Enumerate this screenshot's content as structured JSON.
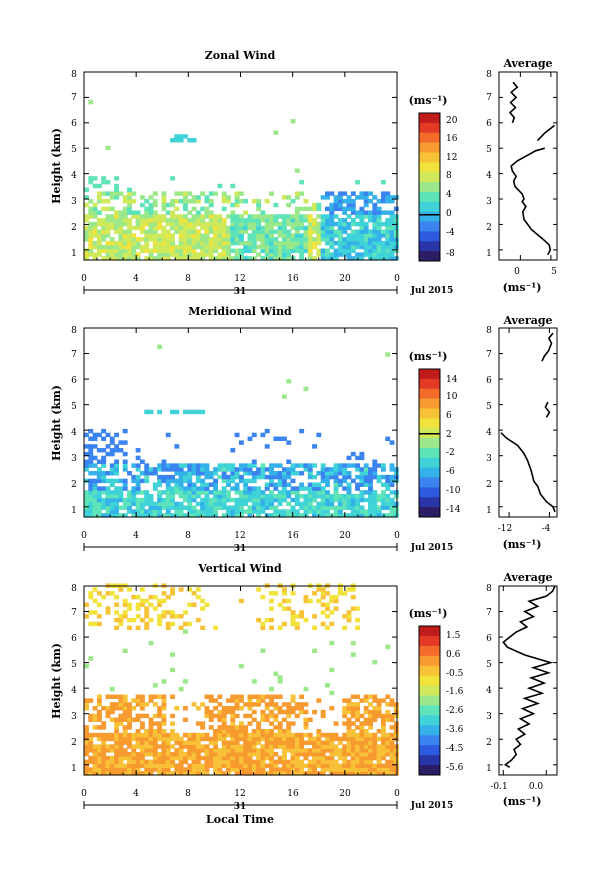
{
  "chart_data": [
    {
      "type": "heatmap",
      "title": "Zonal Wind",
      "ylabel": "Height (km)",
      "xlabel": "",
      "x_ticks": [
        "0",
        "4",
        "8",
        "12",
        "16",
        "20",
        "0"
      ],
      "y_ticks": [
        "1",
        "2",
        "3",
        "4",
        "5",
        "6",
        "7",
        "8"
      ],
      "ylim": [
        0.6,
        8.0
      ],
      "xlim": [
        0,
        24
      ],
      "date_axis": {
        "day_label": "31",
        "date_label": "Jul 2015"
      },
      "colorbar": {
        "unit": "(ms⁻¹)",
        "ticks": [
          "20",
          "16",
          "12",
          "8",
          "4",
          "0",
          "-4",
          "-8"
        ],
        "range": [
          -10,
          22
        ],
        "zero_marker": 0
      },
      "average": {
        "title": "Average",
        "xlabel": "(ms⁻¹)",
        "x_ticks": [
          "0",
          "5"
        ],
        "xlim": [
          -3.5,
          6
        ],
        "y_ticks": [
          "1",
          "2",
          "3",
          "4",
          "5",
          "6",
          "7",
          "8"
        ],
        "ylim": [
          0.6,
          8.0
        ],
        "points": [
          [
            4.5,
            0.8
          ],
          [
            4.9,
            1.0
          ],
          [
            4.7,
            1.2
          ],
          [
            3.8,
            1.4
          ],
          [
            2.8,
            1.6
          ],
          [
            1.8,
            1.8
          ],
          [
            1.2,
            2.0
          ],
          [
            0.6,
            2.2
          ],
          [
            0.4,
            2.5
          ],
          [
            0.9,
            2.7
          ],
          [
            0.3,
            2.9
          ],
          [
            0.6,
            3.0
          ],
          [
            0.3,
            3.2
          ],
          [
            -0.5,
            3.4
          ],
          [
            -0.9,
            3.5
          ],
          [
            -1.1,
            3.7
          ],
          [
            -0.7,
            3.9
          ],
          [
            -1.3,
            4.1
          ],
          [
            -1.5,
            4.3
          ],
          [
            -0.5,
            4.5
          ],
          [
            1.0,
            4.7
          ],
          [
            2.5,
            4.9
          ],
          [
            4.0,
            5.0
          ]
        ],
        "segments": [
          [
            [
              -1.3,
              6.0
            ],
            [
              -1.0,
              6.2
            ],
            [
              -1.7,
              6.4
            ],
            [
              -0.8,
              6.6
            ],
            [
              -1.6,
              6.8
            ],
            [
              -0.7,
              7.0
            ],
            [
              -1.5,
              7.2
            ],
            [
              -0.5,
              7.4
            ],
            [
              -1.2,
              7.6
            ]
          ],
          [
            [
              2.8,
              5.3
            ],
            [
              4.0,
              5.6
            ],
            [
              5.6,
              5.9
            ]
          ]
        ]
      }
    },
    {
      "type": "heatmap",
      "title": "Meridional Wind",
      "ylabel": "Height (km)",
      "xlabel": "",
      "x_ticks": [
        "0",
        "4",
        "8",
        "12",
        "16",
        "20",
        "0"
      ],
      "y_ticks": [
        "1",
        "2",
        "3",
        "4",
        "5",
        "6",
        "7",
        "8"
      ],
      "ylim": [
        0.6,
        8.0
      ],
      "xlim": [
        0,
        24
      ],
      "date_axis": {
        "day_label": "31",
        "date_label": "Jul 2015"
      },
      "colorbar": {
        "unit": "(ms⁻¹)",
        "ticks": [
          "14",
          "10",
          "6",
          "2",
          "-2",
          "-6",
          "-10",
          "-14"
        ],
        "range": [
          -16,
          16
        ],
        "zero_marker": 2
      },
      "average": {
        "title": "Average",
        "xlabel": "(ms⁻¹)",
        "x_ticks": [
          "-12",
          "-4"
        ],
        "xlim": [
          -14,
          -2.5
        ],
        "y_ticks": [
          "1",
          "2",
          "3",
          "4",
          "5",
          "6",
          "7",
          "8"
        ],
        "ylim": [
          0.6,
          8.0
        ],
        "points": [
          [
            -2.9,
            0.8
          ],
          [
            -3.3,
            1.0
          ],
          [
            -4.6,
            1.2
          ],
          [
            -5.8,
            1.5
          ],
          [
            -6.3,
            1.8
          ],
          [
            -7.1,
            2.0
          ],
          [
            -7.6,
            2.4
          ],
          [
            -8.3,
            2.8
          ],
          [
            -9.1,
            3.1
          ],
          [
            -10.3,
            3.4
          ],
          [
            -12.6,
            3.7
          ],
          [
            -13.6,
            3.9
          ]
        ],
        "segments": [
          [
            [
              -4.6,
              4.5
            ],
            [
              -4.0,
              4.7
            ],
            [
              -4.8,
              4.9
            ],
            [
              -4.3,
              5.1
            ]
          ],
          [
            [
              -5.5,
              6.7
            ],
            [
              -5.0,
              6.9
            ],
            [
              -4.2,
              7.1
            ],
            [
              -3.6,
              7.4
            ],
            [
              -4.1,
              7.6
            ],
            [
              -3.3,
              7.8
            ]
          ]
        ]
      }
    },
    {
      "type": "heatmap",
      "title": "Vertical Wind",
      "ylabel": "Height (km)",
      "xlabel": "Local Time",
      "x_ticks": [
        "0",
        "4",
        "8",
        "12",
        "16",
        "20",
        "0"
      ],
      "y_ticks": [
        "1",
        "2",
        "3",
        "4",
        "5",
        "6",
        "7",
        "8"
      ],
      "ylim": [
        0.6,
        8.0
      ],
      "xlim": [
        0,
        24
      ],
      "date_axis": {
        "day_label": "31",
        "date_label": "Jul 2015"
      },
      "colorbar": {
        "unit": "(ms⁻¹)",
        "ticks": [
          "1.5",
          "0.6",
          "-0.5",
          "-1.6",
          "-2.6",
          "-3.6",
          "-4.5",
          "-5.6"
        ],
        "range": [
          -6.2,
          2.1
        ],
        "zero_marker": null
      },
      "average": {
        "title": "Average",
        "xlabel": "(ms⁻¹)",
        "x_ticks": [
          "-0.1",
          "0.0"
        ],
        "xlim": [
          -0.11,
          0.025
        ],
        "y_ticks": [
          "1",
          "2",
          "3",
          "4",
          "5",
          "6",
          "7",
          "8"
        ],
        "ylim": [
          0.6,
          8.0
        ],
        "points": [
          [
            -0.085,
            0.9
          ],
          [
            -0.095,
            1.0
          ],
          [
            -0.08,
            1.2
          ],
          [
            -0.07,
            1.4
          ],
          [
            -0.075,
            1.6
          ],
          [
            -0.06,
            1.8
          ],
          [
            -0.07,
            2.0
          ],
          [
            -0.05,
            2.2
          ],
          [
            -0.065,
            2.4
          ],
          [
            -0.04,
            2.6
          ],
          [
            -0.06,
            2.8
          ],
          [
            -0.03,
            3.0
          ],
          [
            -0.055,
            3.2
          ],
          [
            -0.02,
            3.4
          ],
          [
            -0.05,
            3.6
          ],
          [
            -0.01,
            3.8
          ],
          [
            -0.04,
            4.0
          ],
          [
            -0.005,
            4.2
          ],
          [
            -0.035,
            4.4
          ],
          [
            0.005,
            4.6
          ],
          [
            -0.03,
            4.8
          ],
          [
            0.01,
            5.0
          ],
          [
            -0.05,
            5.3
          ],
          [
            -0.09,
            5.6
          ],
          [
            -0.1,
            5.8
          ],
          [
            -0.085,
            6.0
          ],
          [
            -0.07,
            6.2
          ],
          [
            -0.045,
            6.4
          ],
          [
            -0.06,
            6.6
          ],
          [
            -0.03,
            6.8
          ],
          [
            -0.05,
            7.0
          ],
          [
            -0.02,
            7.2
          ],
          [
            -0.04,
            7.4
          ],
          [
            0.0,
            7.6
          ],
          [
            0.015,
            7.8
          ],
          [
            0.02,
            8.0
          ]
        ],
        "segments": []
      }
    }
  ]
}
